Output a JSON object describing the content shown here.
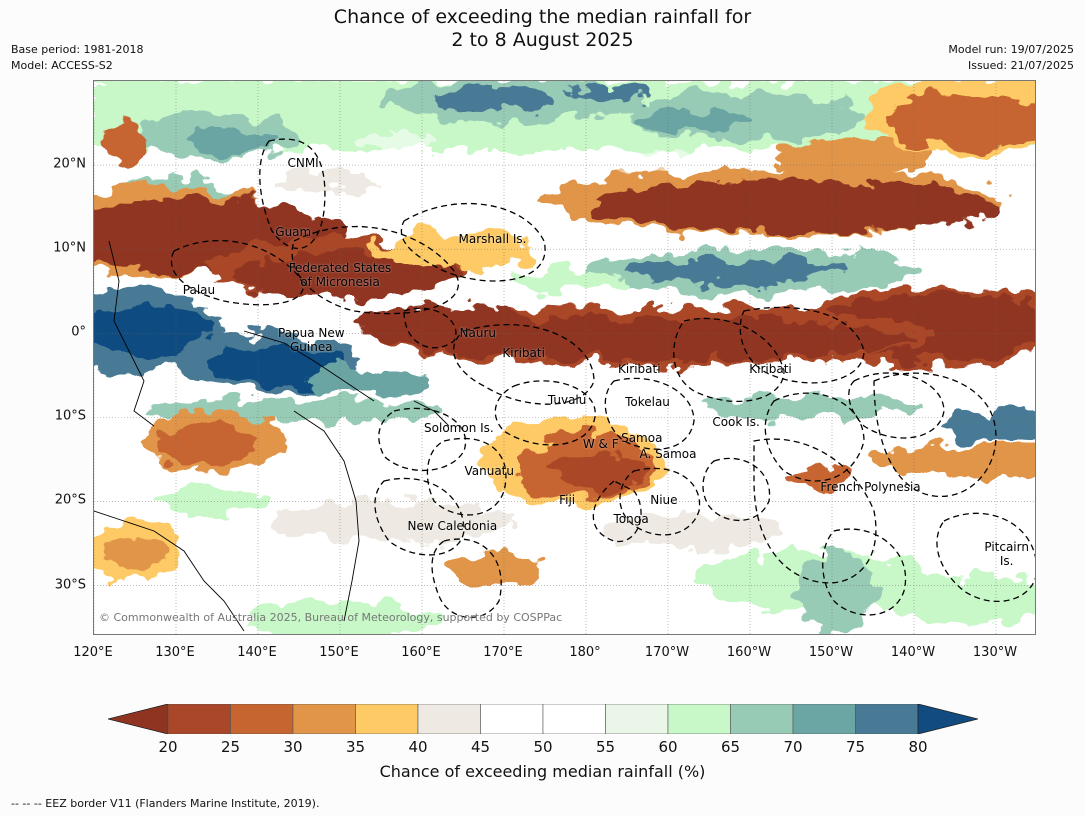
{
  "title": {
    "line1": "Chance of exceeding the median rainfall for",
    "line2": "2 to 8 August 2025"
  },
  "meta": {
    "base_period": "Base period: 1981-2018",
    "model": "Model: ACCESS-S2",
    "model_run": "Model run: 19/07/2025",
    "issued": "Issued: 21/07/2025"
  },
  "map": {
    "lon_range": [
      120,
      235
    ],
    "lat_range": [
      -36,
      30
    ],
    "x_ticks": [
      {
        "lon": 120,
        "label": "120°E"
      },
      {
        "lon": 130,
        "label": "130°E"
      },
      {
        "lon": 140,
        "label": "140°E"
      },
      {
        "lon": 150,
        "label": "150°E"
      },
      {
        "lon": 160,
        "label": "160°E"
      },
      {
        "lon": 170,
        "label": "170°E"
      },
      {
        "lon": 180,
        "label": "180°"
      },
      {
        "lon": 190,
        "label": "170°W"
      },
      {
        "lon": 200,
        "label": "160°W"
      },
      {
        "lon": 210,
        "label": "150°W"
      },
      {
        "lon": 220,
        "label": "140°W"
      },
      {
        "lon": 230,
        "label": "130°W"
      }
    ],
    "y_ticks": [
      {
        "lat": 20,
        "label": "20°N"
      },
      {
        "lat": 10,
        "label": "10°N"
      },
      {
        "lat": 0,
        "label": "0°"
      },
      {
        "lat": -10,
        "label": "10°S"
      },
      {
        "lat": -20,
        "label": "20°S"
      },
      {
        "lat": -30,
        "label": "30°S"
      }
    ],
    "gridlines": true,
    "copyright": "© Commonwealth of Australia 2025, Bureau of Meteorology, supported by COSPPac",
    "regions": [
      {
        "name": "CNMI",
        "lon": 145.5,
        "lat": 20.2
      },
      {
        "name": "Guam",
        "lon": 144.3,
        "lat": 12.1
      },
      {
        "name": "Marshall Is.",
        "lon": 168.6,
        "lat": 11.2
      },
      {
        "name": "Federated States\nof Micronesia",
        "lon": 150,
        "lat": 6.9
      },
      {
        "name": "Palau",
        "lon": 132.8,
        "lat": 5.2
      },
      {
        "name": "Papua New\nGuinea",
        "lon": 146.5,
        "lat": -0.8
      },
      {
        "name": "Nauru",
        "lon": 166.8,
        "lat": 0
      },
      {
        "name": "Kiribati",
        "lon": 172.4,
        "lat": -2.3
      },
      {
        "name": "Kiribati",
        "lon": 186.5,
        "lat": -4.2
      },
      {
        "name": "Kiribati",
        "lon": 202.5,
        "lat": -4.2
      },
      {
        "name": "Tuvalu",
        "lon": 177.7,
        "lat": -7.9
      },
      {
        "name": "Tokelau",
        "lon": 187.5,
        "lat": -8.2
      },
      {
        "name": "Solomon Is.",
        "lon": 164.5,
        "lat": -11.3
      },
      {
        "name": "Cook Is.",
        "lon": 198.3,
        "lat": -10.6
      },
      {
        "name": "Samoa",
        "lon": 186.8,
        "lat": -12.5
      },
      {
        "name": "W & F",
        "lon": 181.8,
        "lat": -13.2
      },
      {
        "name": "A. Samoa",
        "lon": 190,
        "lat": -14.4
      },
      {
        "name": "Vanuatu",
        "lon": 168.2,
        "lat": -16.4
      },
      {
        "name": "French Polynesia",
        "lon": 214.7,
        "lat": -18.3
      },
      {
        "name": "Fiji",
        "lon": 177.7,
        "lat": -19.8
      },
      {
        "name": "Niue",
        "lon": 189.5,
        "lat": -19.8
      },
      {
        "name": "Tonga",
        "lon": 185.5,
        "lat": -22.1
      },
      {
        "name": "New Caledonia",
        "lon": 163.7,
        "lat": -22.9
      },
      {
        "name": "Pitcairn\nIs.",
        "lon": 231.3,
        "lat": -26.2
      }
    ]
  },
  "colorbar": {
    "title": "Chance of exceeding median rainfall (%)",
    "ticks": [
      "20",
      "25",
      "30",
      "35",
      "40",
      "45",
      "50",
      "55",
      "60",
      "65",
      "70",
      "75",
      "80"
    ],
    "low_extend_color": "#8f3421",
    "high_extend_color": "#114b80",
    "colors": [
      "#a94728",
      "#c76530",
      "#e09548",
      "#fdca66",
      "#eeeae3",
      "#ffffff",
      "#ffffff",
      "#eaf6e7",
      "#c8f7c8",
      "#98cbb6",
      "#6ba5a4",
      "#487a95"
    ]
  },
  "footnote": "--  --  -- EEZ border V11 (Flanders Marine Institute, 2019)."
}
